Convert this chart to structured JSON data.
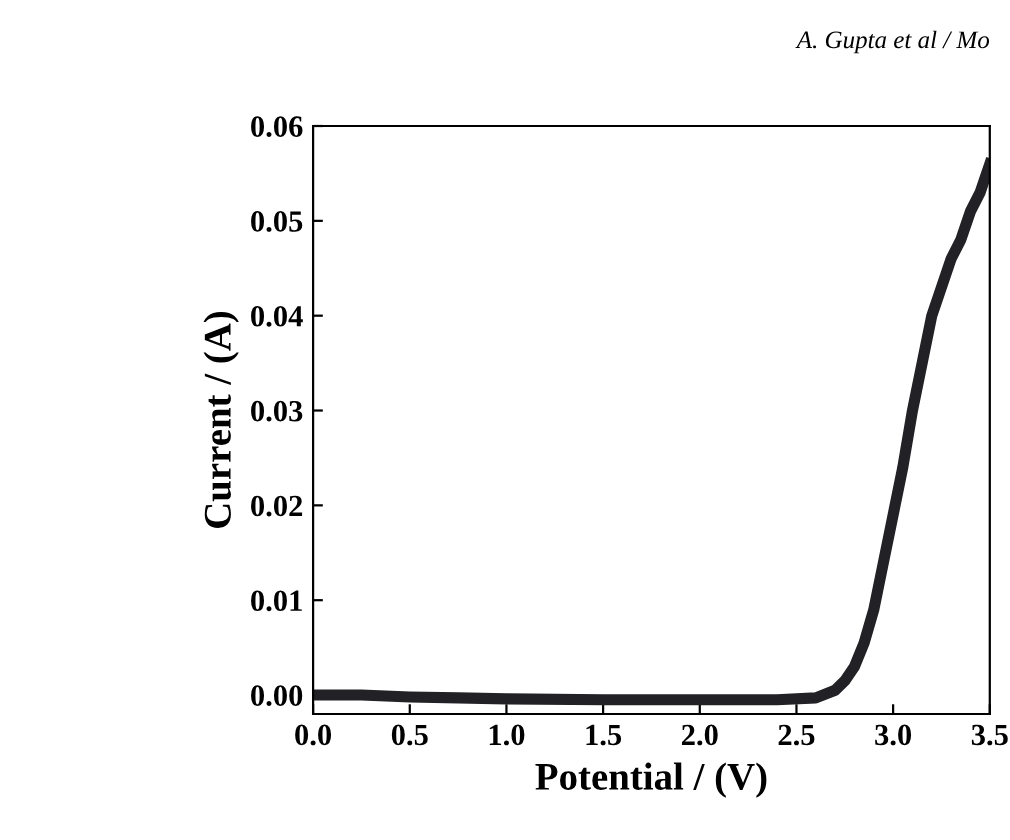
{
  "chart_data": {
    "type": "line",
    "xlabel": "Potential / (V)",
    "ylabel": "Current / (A)",
    "annotations": [
      "A. Gupta et al / Mo"
    ],
    "x": [
      0.0,
      0.25,
      0.5,
      0.75,
      1.0,
      1.5,
      2.0,
      2.4,
      2.6,
      2.7,
      2.75,
      2.8,
      2.85,
      2.9,
      2.95,
      3.0,
      3.05,
      3.1,
      3.15,
      3.2,
      3.25,
      3.3,
      3.35,
      3.4,
      3.45,
      3.5
    ],
    "series": [
      {
        "color": "#222226",
        "values": [
          0.0,
          0.0,
          -0.0002,
          -0.0003,
          -0.0004,
          -0.0005,
          -0.0005,
          -0.0005,
          -0.0003,
          0.0005,
          0.0015,
          0.003,
          0.0055,
          0.009,
          0.014,
          0.019,
          0.024,
          0.03,
          0.035,
          0.04,
          0.043,
          0.046,
          0.048,
          0.051,
          0.053,
          0.056
        ]
      }
    ],
    "xlim": [
      0,
      3.5
    ],
    "ylim": [
      -0.002,
      0.06
    ],
    "xticks": [
      {
        "value": 0,
        "label": "0.0"
      },
      0.5,
      {
        "value": 1,
        "label": "1.0"
      },
      1.5,
      {
        "value": 2,
        "label": "2.0"
      },
      2.5,
      {
        "value": 3,
        "label": "3.0"
      },
      3.5
    ],
    "yticks": [
      {
        "value": 0,
        "label": "0.00"
      },
      0.01,
      0.02,
      0.03,
      0.04,
      0.05,
      0.06
    ],
    "grid": false,
    "legend": false,
    "marker": "none",
    "line_style": "solid"
  }
}
